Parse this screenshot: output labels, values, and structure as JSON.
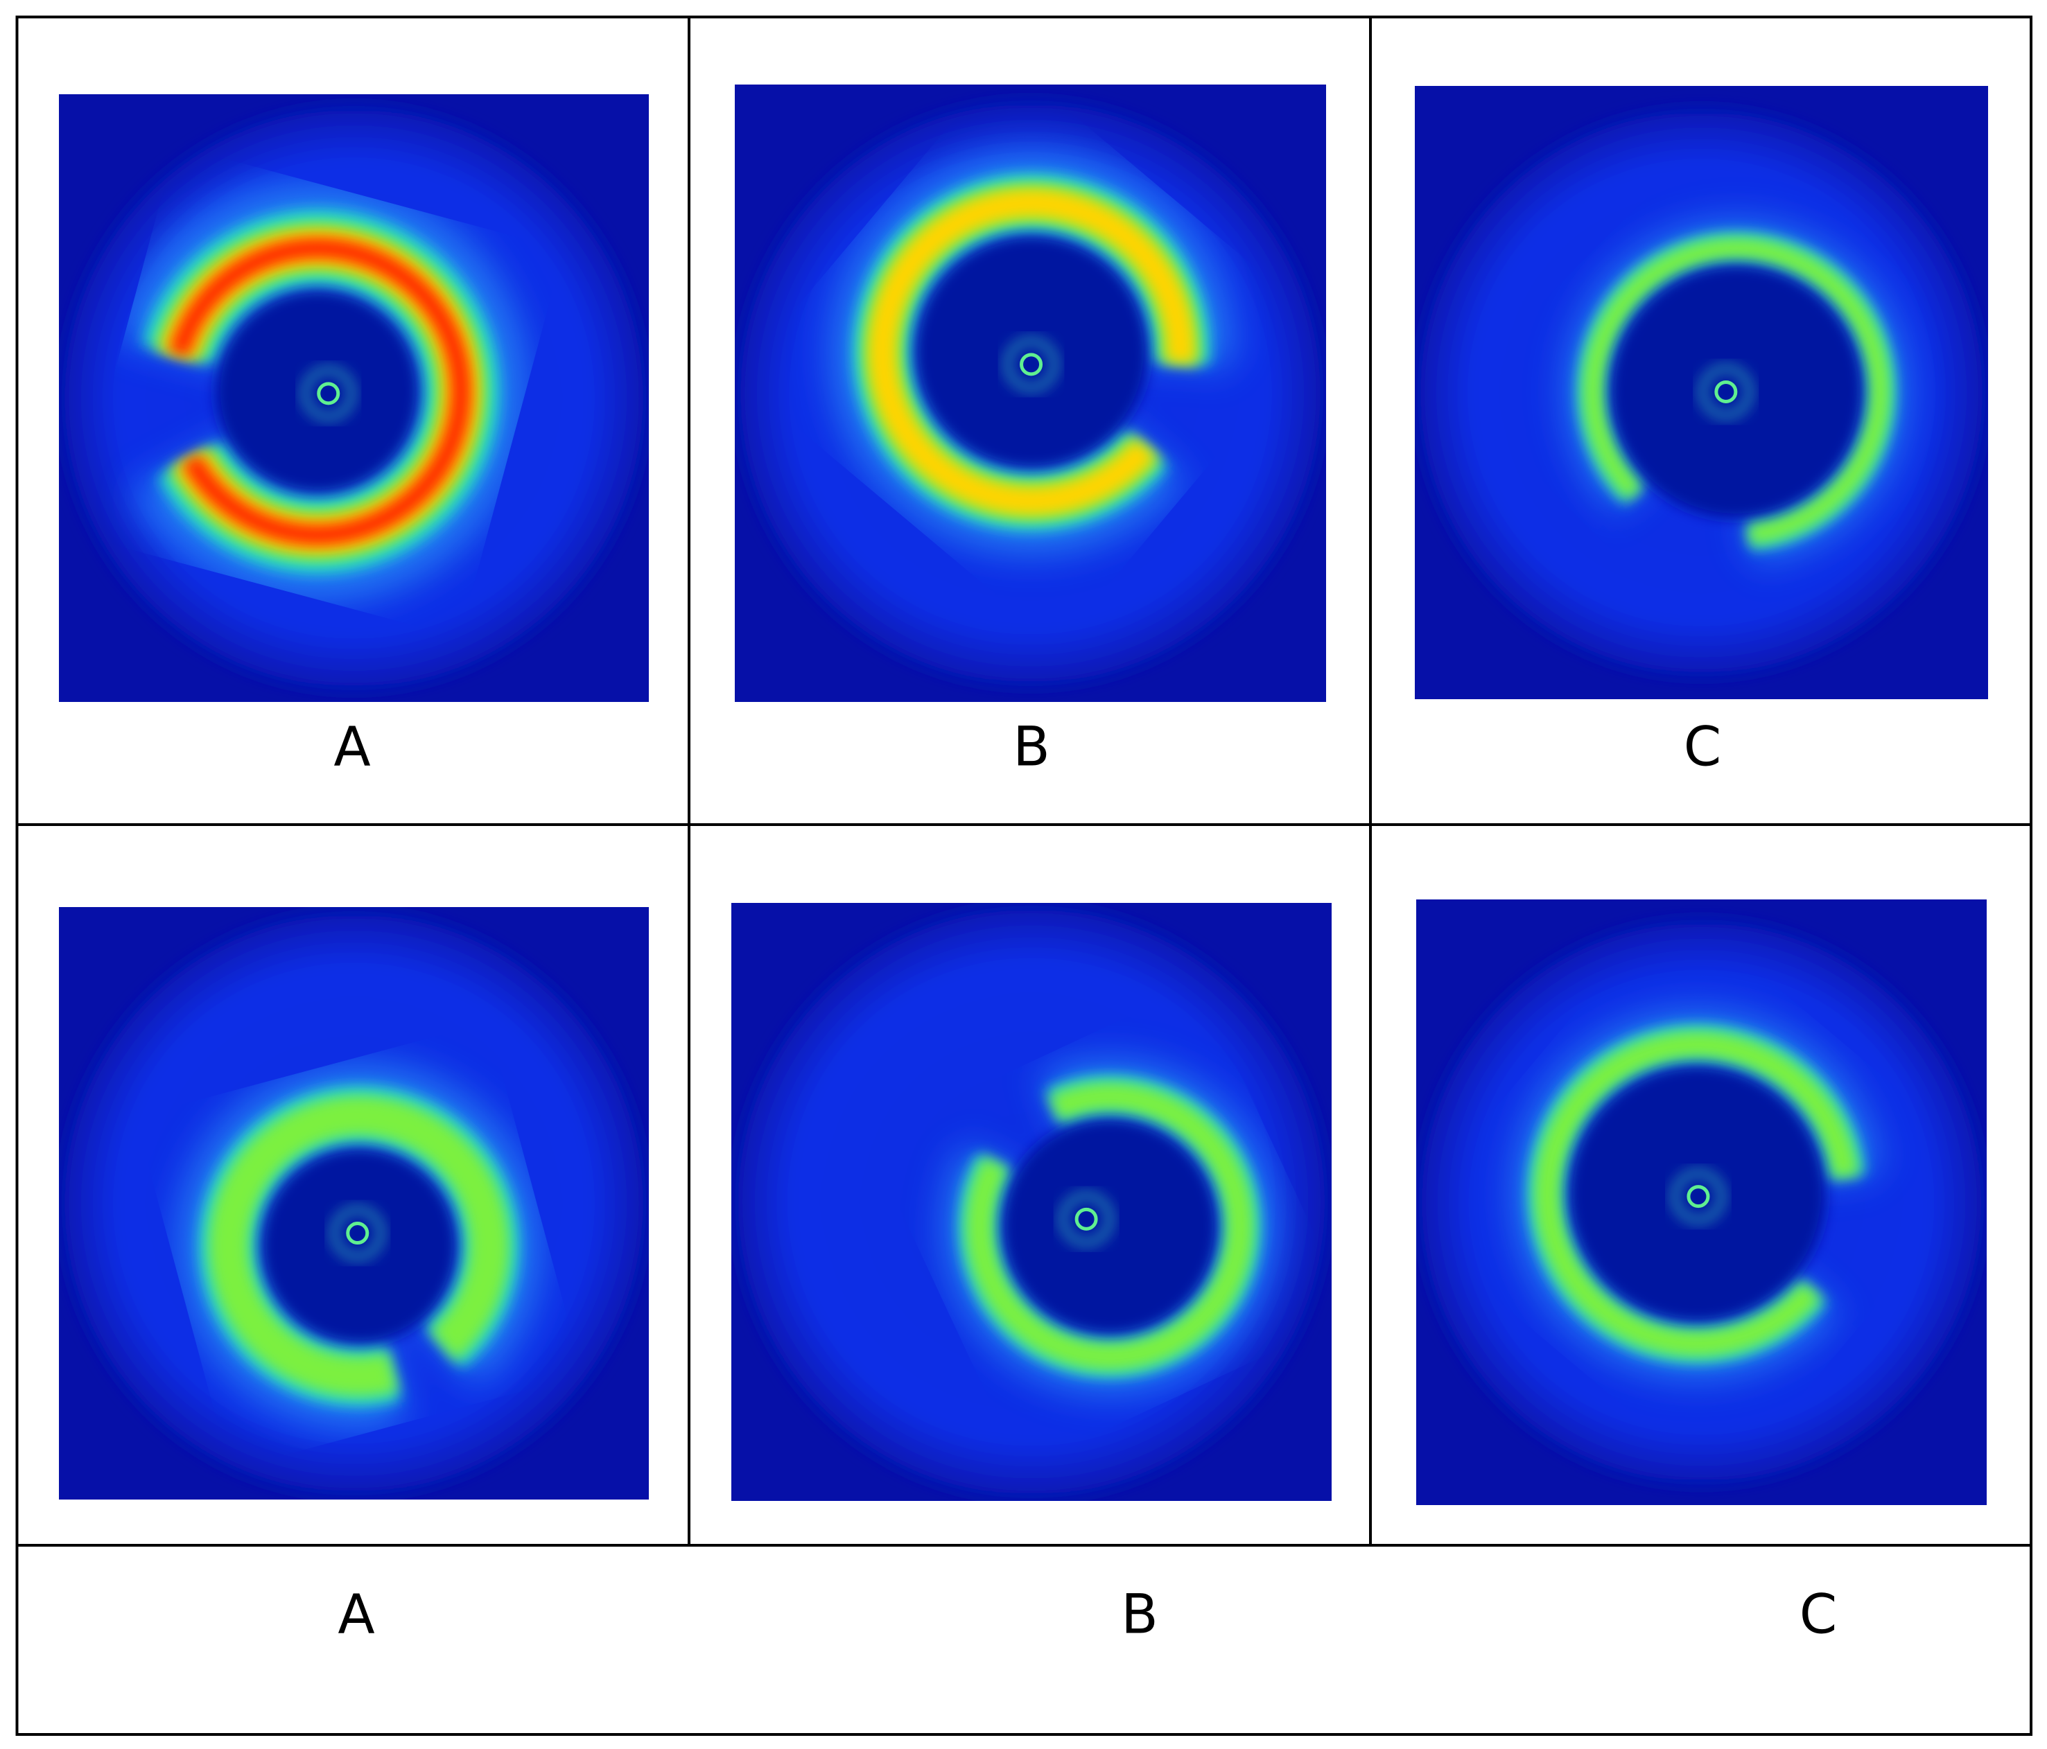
{
  "figure": {
    "top_labels": [
      "A",
      "B",
      "C"
    ],
    "bottom_labels": [
      "A",
      "B",
      "C"
    ]
  }
}
